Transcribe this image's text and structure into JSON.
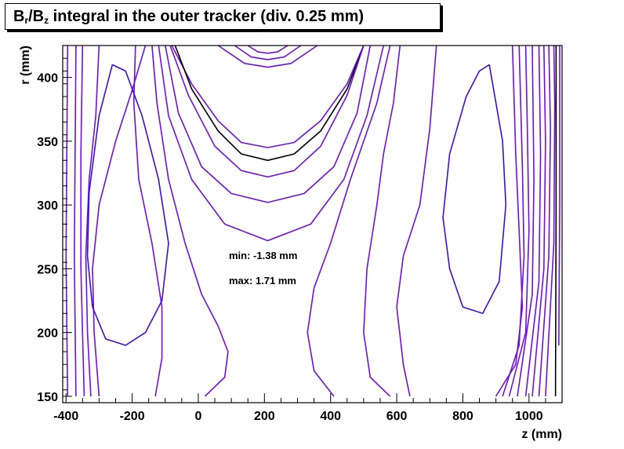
{
  "title": {
    "part1": "B",
    "sub1": "r",
    "part2": "/B",
    "sub2": "z",
    "part3": " integral in the outer tracker (div. 0.25 mm)"
  },
  "annotations": {
    "min": "min: -1.38 mm",
    "max": "max: 1.71 mm"
  },
  "chart_data": {
    "type": "contour",
    "title": "Br/Bz integral in the outer tracker (div. 0.25 mm)",
    "xlabel": "z (mm)",
    "ylabel": "r (mm)",
    "xlim": [
      -410,
      1100
    ],
    "ylim": [
      145,
      425
    ],
    "xticks": [
      -400,
      -200,
      0,
      200,
      400,
      600,
      800,
      1000
    ],
    "yticks": [
      150,
      200,
      250,
      300,
      350,
      400
    ],
    "x_tick_labels": [
      "-400",
      "-200",
      "0",
      "200",
      "400",
      "600",
      "800",
      "1000"
    ],
    "y_tick_labels": [
      "150",
      "200",
      "250",
      "300",
      "350",
      "400"
    ],
    "contour_step_mm": 0.25,
    "min_value_mm": -1.38,
    "max_value_mm": 1.71,
    "colors": {
      "contour": "#7010d8",
      "inner_contour": "#3a10d0",
      "highlight_contour": "#000000",
      "frame": "#000000"
    },
    "contours": [
      {
        "color": "#7010d8",
        "points": [
          [
            -80,
            425
          ],
          [
            -20,
            395
          ],
          [
            60,
            366
          ],
          [
            130,
            349
          ],
          [
            210,
            345
          ],
          [
            290,
            349
          ],
          [
            370,
            366
          ],
          [
            450,
            395
          ],
          [
            500,
            425
          ]
        ]
      },
      {
        "color": "#000000",
        "points": [
          [
            -70,
            425
          ],
          [
            -20,
            391
          ],
          [
            60,
            358
          ],
          [
            130,
            340
          ],
          [
            210,
            335
          ],
          [
            290,
            340
          ],
          [
            370,
            358
          ],
          [
            450,
            391
          ],
          [
            500,
            425
          ]
        ]
      },
      {
        "color": "#7010d8",
        "points": [
          [
            -85,
            425
          ],
          [
            -30,
            386
          ],
          [
            50,
            346
          ],
          [
            130,
            327
          ],
          [
            210,
            322
          ],
          [
            290,
            327
          ],
          [
            370,
            346
          ],
          [
            450,
            386
          ],
          [
            500,
            425
          ]
        ]
      },
      {
        "color": "#7010d8",
        "points": [
          [
            -100,
            425
          ],
          [
            -60,
            372
          ],
          [
            10,
            330
          ],
          [
            100,
            309
          ],
          [
            210,
            302
          ],
          [
            320,
            309
          ],
          [
            410,
            330
          ],
          [
            480,
            372
          ],
          [
            520,
            425
          ]
        ]
      },
      {
        "color": "#7010d8",
        "points": [
          [
            -120,
            425
          ],
          [
            -90,
            370
          ],
          [
            -20,
            320
          ],
          [
            80,
            285
          ],
          [
            210,
            272
          ],
          [
            340,
            285
          ],
          [
            440,
            320
          ],
          [
            510,
            370
          ],
          [
            560,
            425
          ]
        ]
      },
      {
        "color": "#7010d8",
        "points": [
          [
            60,
            425
          ],
          [
            140,
            411
          ],
          [
            210,
            408
          ],
          [
            280,
            411
          ],
          [
            360,
            425
          ]
        ]
      },
      {
        "color": "#7010d8",
        "points": [
          [
            110,
            425
          ],
          [
            160,
            416
          ],
          [
            210,
            414
          ],
          [
            260,
            416
          ],
          [
            310,
            425
          ]
        ]
      },
      {
        "color": "#7010d8",
        "points": [
          [
            150,
            425
          ],
          [
            180,
            420
          ],
          [
            210,
            419
          ],
          [
            240,
            420
          ],
          [
            270,
            425
          ]
        ]
      },
      {
        "color": "#7010d8",
        "points": [
          [
            -140,
            425
          ],
          [
            -125,
            380
          ],
          [
            -90,
            320
          ],
          [
            -40,
            270
          ],
          [
            10,
            230
          ],
          [
            60,
            205
          ],
          [
            90,
            185
          ],
          [
            80,
            165
          ],
          [
            20,
            150
          ]
        ]
      },
      {
        "color": "#7010d8",
        "points": [
          [
            410,
            150
          ],
          [
            350,
            170
          ],
          [
            330,
            200
          ],
          [
            350,
            235
          ],
          [
            400,
            270
          ],
          [
            460,
            320
          ],
          [
            540,
            380
          ],
          [
            580,
            425
          ]
        ]
      },
      {
        "color": "#7010d8",
        "points": [
          [
            -190,
            425
          ],
          [
            -195,
            380
          ],
          [
            -180,
            320
          ],
          [
            -140,
            270
          ],
          [
            -110,
            220
          ],
          [
            -110,
            180
          ],
          [
            -130,
            150
          ]
        ]
      },
      {
        "color": "#7010d8",
        "points": [
          [
            580,
            150
          ],
          [
            520,
            165
          ],
          [
            500,
            200
          ],
          [
            510,
            250
          ],
          [
            540,
            300
          ],
          [
            560,
            340
          ],
          [
            590,
            380
          ],
          [
            610,
            425
          ]
        ]
      },
      {
        "color": "#7010d8",
        "points": [
          [
            -300,
            150
          ],
          [
            -315,
            200
          ],
          [
            -320,
            250
          ],
          [
            -300,
            300
          ],
          [
            -250,
            350
          ],
          [
            -200,
            390
          ],
          [
            -160,
            425
          ]
        ]
      },
      {
        "color": "#7010d8",
        "points": [
          [
            -325,
            150
          ],
          [
            -335,
            200
          ],
          [
            -340,
            260
          ],
          [
            -330,
            320
          ],
          [
            -310,
            370
          ],
          [
            -300,
            425
          ]
        ]
      },
      {
        "color": "#7010d8",
        "points": [
          [
            -345,
            150
          ],
          [
            -355,
            250
          ],
          [
            -355,
            340
          ],
          [
            -350,
            425
          ]
        ]
      },
      {
        "color": "#7010d8",
        "points": [
          [
            -370,
            150
          ],
          [
            -375,
            260
          ],
          [
            -370,
            425
          ]
        ]
      },
      {
        "color": "#7010d8",
        "points": [
          [
            -395,
            150
          ],
          [
            -400,
            260
          ],
          [
            -395,
            425
          ]
        ]
      },
      {
        "color": "#3a10d0",
        "points": [
          [
            -260,
            410
          ],
          [
            -300,
            370
          ],
          [
            -330,
            310
          ],
          [
            -335,
            260
          ],
          [
            -320,
            220
          ],
          [
            -280,
            195
          ],
          [
            -220,
            190
          ],
          [
            -160,
            200
          ],
          [
            -110,
            225
          ],
          [
            -90,
            270
          ],
          [
            -120,
            320
          ],
          [
            -170,
            370
          ],
          [
            -220,
            405
          ],
          [
            -260,
            410
          ]
        ]
      },
      {
        "color": "#3a10d0",
        "points": [
          [
            880,
            410
          ],
          [
            920,
            350
          ],
          [
            930,
            300
          ],
          [
            910,
            240
          ],
          [
            860,
            215
          ],
          [
            800,
            220
          ],
          [
            760,
            250
          ],
          [
            740,
            290
          ],
          [
            760,
            340
          ],
          [
            810,
            385
          ],
          [
            850,
            405
          ],
          [
            880,
            410
          ]
        ]
      },
      {
        "color": "#7010d8",
        "points": [
          [
            640,
            150
          ],
          [
            620,
            175
          ],
          [
            600,
            220
          ],
          [
            620,
            260
          ],
          [
            670,
            300
          ],
          [
            700,
            360
          ],
          [
            720,
            425
          ]
        ]
      },
      {
        "color": "#7010d8",
        "points": [
          [
            900,
            150
          ],
          [
            960,
            175
          ],
          [
            980,
            220
          ],
          [
            970,
            280
          ],
          [
            960,
            340
          ],
          [
            950,
            425
          ]
        ]
      },
      {
        "color": "#7010d8",
        "points": [
          [
            920,
            150
          ],
          [
            970,
            190
          ],
          [
            985,
            260
          ],
          [
            980,
            330
          ],
          [
            970,
            425
          ]
        ]
      },
      {
        "color": "#7010d8",
        "points": [
          [
            940,
            150
          ],
          [
            990,
            200
          ],
          [
            1000,
            280
          ],
          [
            995,
            360
          ],
          [
            990,
            425
          ]
        ]
      },
      {
        "color": "#7010d8",
        "points": [
          [
            965,
            150
          ],
          [
            1010,
            230
          ],
          [
            1015,
            320
          ],
          [
            1010,
            425
          ]
        ]
      },
      {
        "color": "#7010d8",
        "points": [
          [
            990,
            150
          ],
          [
            1030,
            240
          ],
          [
            1035,
            340
          ],
          [
            1030,
            425
          ]
        ]
      },
      {
        "color": "#7010d8",
        "points": [
          [
            1010,
            150
          ],
          [
            1045,
            250
          ],
          [
            1050,
            350
          ],
          [
            1045,
            425
          ]
        ]
      },
      {
        "color": "#7010d8",
        "points": [
          [
            1030,
            150
          ],
          [
            1060,
            260
          ],
          [
            1065,
            360
          ],
          [
            1060,
            425
          ]
        ]
      },
      {
        "color": "#7010d8",
        "points": [
          [
            1050,
            150
          ],
          [
            1075,
            270
          ],
          [
            1078,
            380
          ],
          [
            1075,
            425
          ]
        ]
      },
      {
        "color": "#000000",
        "points": [
          [
            1080,
            150
          ],
          [
            1082,
            300
          ],
          [
            1082,
            425
          ]
        ]
      },
      {
        "color": "#7010d8",
        "points": [
          [
            1090,
            190
          ],
          [
            1093,
            300
          ],
          [
            1093,
            425
          ]
        ]
      }
    ]
  }
}
